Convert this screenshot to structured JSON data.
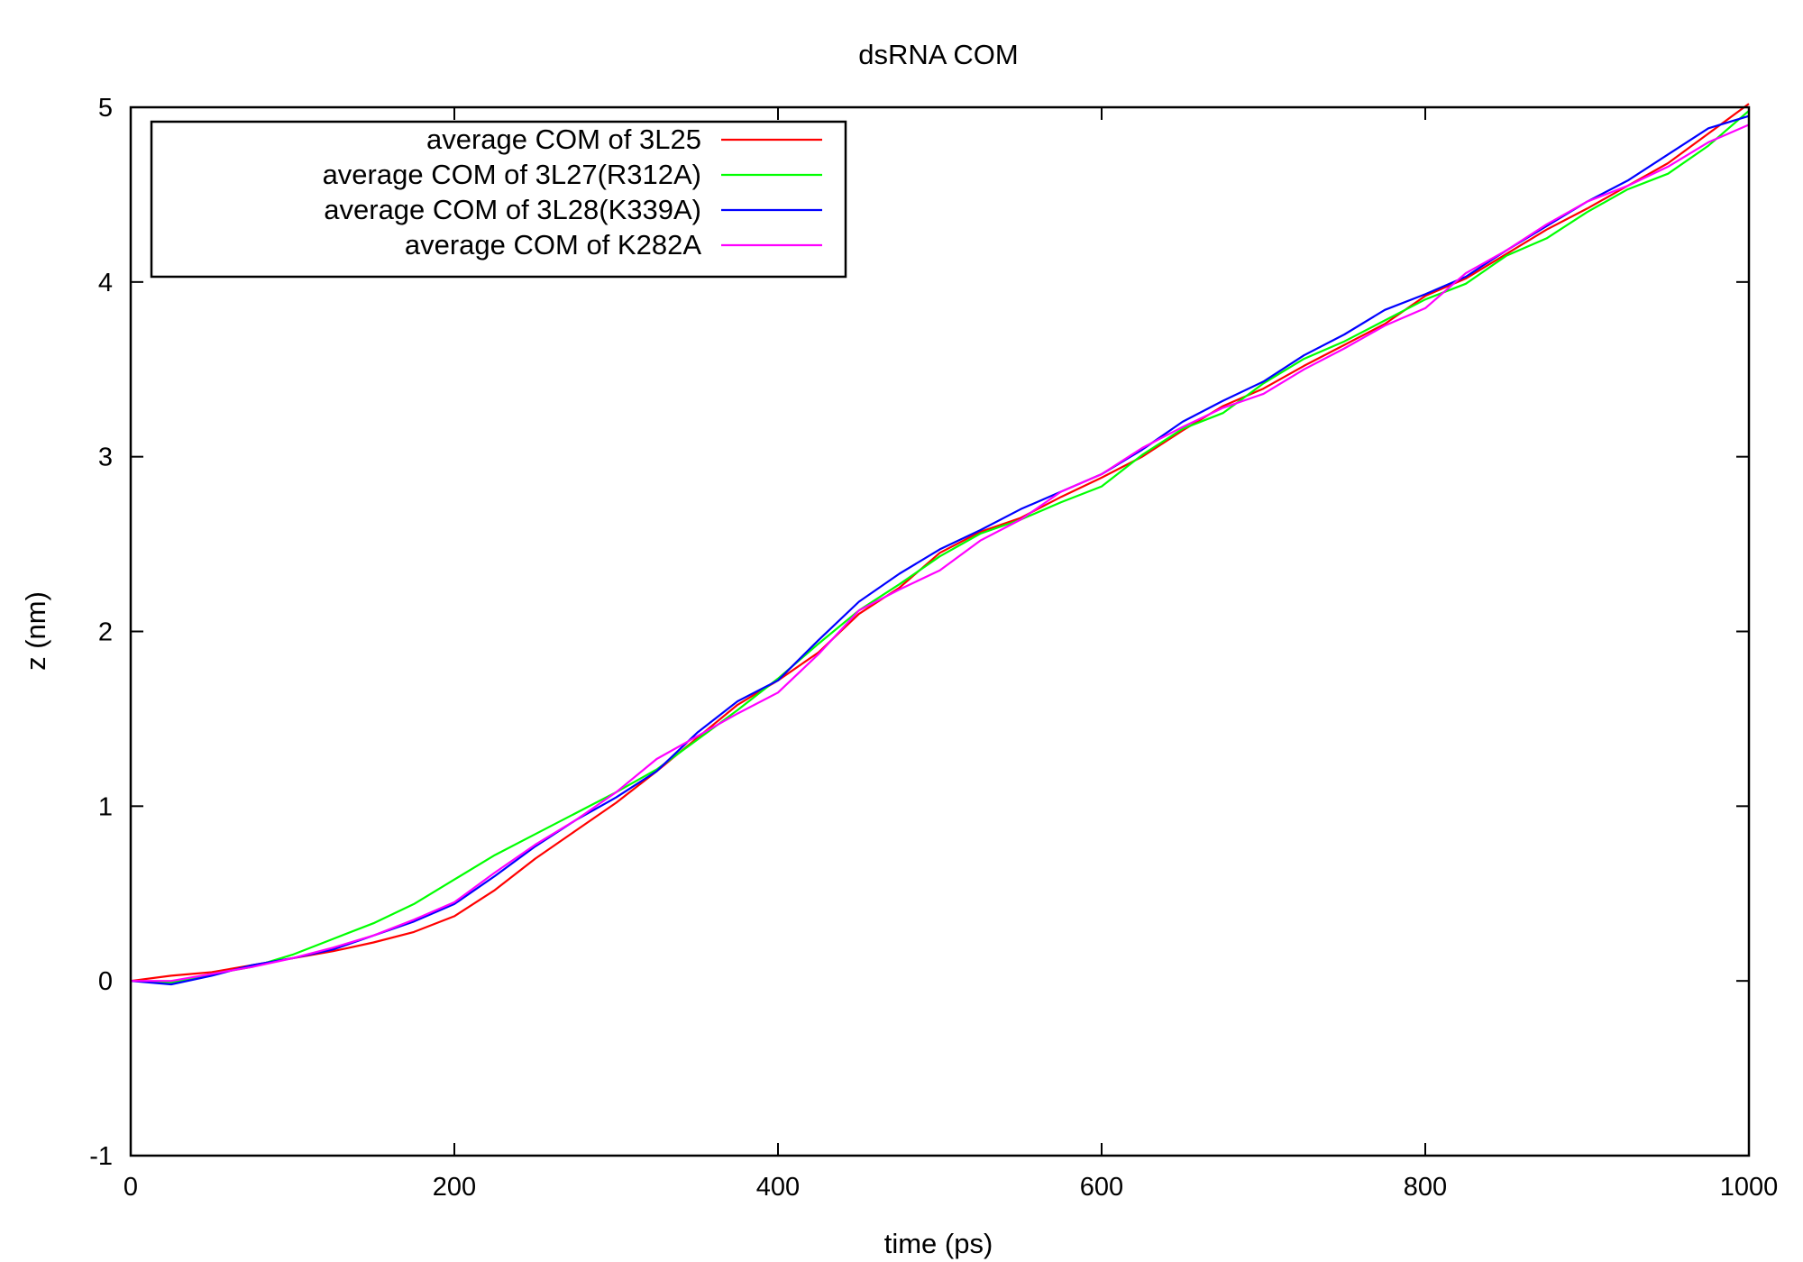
{
  "chart_data": {
    "type": "line",
    "title": "dsRNA COM",
    "xlabel": "time (ps)",
    "ylabel": "z (nm)",
    "xlim": [
      0,
      1000
    ],
    "ylim": [
      -1,
      5
    ],
    "xticks": [
      0,
      200,
      400,
      600,
      800,
      1000
    ],
    "yticks": [
      -1,
      0,
      1,
      2,
      3,
      4,
      5
    ],
    "grid": false,
    "legend": "top-left",
    "series": [
      {
        "name": "average COM of 3L25",
        "color": "#ff0000",
        "x": [
          0,
          25,
          50,
          75,
          100,
          125,
          150,
          175,
          200,
          225,
          250,
          275,
          300,
          325,
          350,
          375,
          400,
          425,
          450,
          475,
          500,
          525,
          550,
          575,
          600,
          625,
          650,
          675,
          700,
          725,
          750,
          775,
          800,
          825,
          850,
          875,
          900,
          925,
          950,
          975,
          1000
        ],
        "values": [
          0.0,
          0.03,
          0.05,
          0.09,
          0.13,
          0.17,
          0.22,
          0.28,
          0.37,
          0.52,
          0.7,
          0.86,
          1.02,
          1.2,
          1.39,
          1.58,
          1.72,
          1.88,
          2.1,
          2.25,
          2.45,
          2.57,
          2.65,
          2.77,
          2.88,
          3.0,
          3.15,
          3.29,
          3.39,
          3.52,
          3.64,
          3.76,
          3.92,
          4.02,
          4.16,
          4.3,
          4.42,
          4.55,
          4.68,
          4.85,
          5.02
        ]
      },
      {
        "name": "average COM of 3L27(R312A)",
        "color": "#00ff00",
        "x": [
          0,
          25,
          50,
          75,
          100,
          125,
          150,
          175,
          200,
          225,
          250,
          275,
          300,
          325,
          350,
          375,
          400,
          425,
          450,
          475,
          500,
          525,
          550,
          575,
          600,
          625,
          650,
          675,
          700,
          725,
          750,
          775,
          800,
          825,
          850,
          875,
          900,
          925,
          950,
          975,
          1000
        ],
        "values": [
          0.0,
          -0.01,
          0.04,
          0.08,
          0.15,
          0.24,
          0.33,
          0.44,
          0.58,
          0.72,
          0.84,
          0.96,
          1.08,
          1.21,
          1.38,
          1.55,
          1.73,
          1.93,
          2.12,
          2.27,
          2.43,
          2.56,
          2.64,
          2.74,
          2.83,
          3.01,
          3.16,
          3.25,
          3.42,
          3.56,
          3.66,
          3.78,
          3.9,
          3.99,
          4.15,
          4.25,
          4.4,
          4.53,
          4.62,
          4.78,
          4.98
        ]
      },
      {
        "name": "average COM of 3L28(K339A)",
        "color": "#0000ff",
        "x": [
          0,
          25,
          50,
          75,
          100,
          125,
          150,
          175,
          200,
          225,
          250,
          275,
          300,
          325,
          350,
          375,
          400,
          425,
          450,
          475,
          500,
          525,
          550,
          575,
          600,
          625,
          650,
          675,
          700,
          725,
          750,
          775,
          800,
          825,
          850,
          875,
          900,
          925,
          950,
          975,
          1000
        ],
        "values": [
          0.0,
          -0.02,
          0.03,
          0.09,
          0.13,
          0.18,
          0.26,
          0.34,
          0.44,
          0.6,
          0.77,
          0.92,
          1.05,
          1.2,
          1.42,
          1.6,
          1.72,
          1.95,
          2.17,
          2.33,
          2.47,
          2.58,
          2.7,
          2.8,
          2.9,
          3.04,
          3.2,
          3.32,
          3.43,
          3.58,
          3.7,
          3.84,
          3.93,
          4.03,
          4.18,
          4.32,
          4.46,
          4.58,
          4.73,
          4.88,
          4.95
        ]
      },
      {
        "name": "average COM of K282A",
        "color": "#ff00ff",
        "x": [
          0,
          25,
          50,
          75,
          100,
          125,
          150,
          175,
          200,
          225,
          250,
          275,
          300,
          325,
          350,
          375,
          400,
          425,
          450,
          475,
          500,
          525,
          550,
          575,
          600,
          625,
          650,
          675,
          700,
          725,
          750,
          775,
          800,
          825,
          850,
          875,
          900,
          925,
          950,
          975,
          1000
        ],
        "values": [
          0.0,
          0.0,
          0.04,
          0.08,
          0.13,
          0.19,
          0.26,
          0.35,
          0.45,
          0.62,
          0.78,
          0.92,
          1.08,
          1.27,
          1.4,
          1.53,
          1.65,
          1.87,
          2.12,
          2.24,
          2.35,
          2.52,
          2.64,
          2.8,
          2.9,
          3.05,
          3.17,
          3.28,
          3.36,
          3.5,
          3.62,
          3.75,
          3.85,
          4.05,
          4.18,
          4.33,
          4.46,
          4.55,
          4.66,
          4.8,
          4.9
        ]
      }
    ]
  }
}
